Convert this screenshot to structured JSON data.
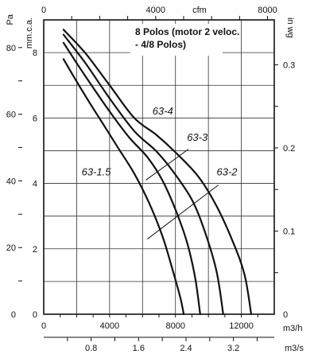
{
  "chart_data": {
    "type": "line",
    "title": "",
    "note": {
      "line1": "8 Polos (motor 2 veloc.",
      "line2": "- 4/8 Polos)"
    },
    "units": {
      "left_outer": "Pa",
      "left_inner": "mm.c.a.",
      "right": "in wg",
      "top": "cfm",
      "bottom_1": "m3/h",
      "bottom_2": "m3/s"
    },
    "axes": {
      "x_m3h": {
        "range": [
          0,
          14000
        ],
        "ticks": [
          0,
          4000,
          8000,
          12000
        ]
      },
      "x_m3s": {
        "range": [
          0,
          3.8889
        ],
        "ticks": [
          0.8,
          1.6,
          2.4,
          3.2
        ]
      },
      "x_cfm": {
        "range": [
          0,
          8240
        ],
        "ticks": [
          0,
          4000,
          8000
        ]
      },
      "y_mmca": {
        "range": [
          0,
          9
        ],
        "ticks": [
          0,
          2,
          4,
          6,
          8
        ]
      },
      "y_pa": {
        "range": [
          0,
          88.3
        ],
        "ticks": [
          0,
          20,
          40,
          60,
          80
        ]
      },
      "y_inwg": {
        "range": [
          0,
          0.354
        ],
        "ticks": [
          0,
          0.1,
          0.2,
          0.3
        ]
      },
      "grid": true
    },
    "series": [
      {
        "name": "63-4",
        "points": [
          [
            1200,
            8.7
          ],
          [
            2500,
            8.0
          ],
          [
            4000,
            7.0
          ],
          [
            5500,
            6.0
          ],
          [
            6800,
            5.5
          ],
          [
            8000,
            4.95
          ],
          [
            9400,
            4.2
          ],
          [
            10500,
            3.3
          ],
          [
            11500,
            2.2
          ],
          [
            12200,
            1.2
          ],
          [
            12600,
            0
          ]
        ]
      },
      {
        "name": "63-3",
        "points": [
          [
            1200,
            8.55
          ],
          [
            2500,
            7.7
          ],
          [
            4000,
            6.6
          ],
          [
            5500,
            5.6
          ],
          [
            6800,
            5.0
          ],
          [
            7800,
            4.4
          ],
          [
            9000,
            3.5
          ],
          [
            9800,
            2.5
          ],
          [
            10500,
            1.3
          ],
          [
            10900,
            0
          ]
        ]
      },
      {
        "name": "63-2",
        "points": [
          [
            1200,
            8.3
          ],
          [
            2500,
            7.3
          ],
          [
            4000,
            6.2
          ],
          [
            5200,
            5.4
          ],
          [
            6300,
            4.8
          ],
          [
            7200,
            4.1
          ],
          [
            8000,
            3.2
          ],
          [
            8700,
            2.2
          ],
          [
            9200,
            1.1
          ],
          [
            9500,
            0
          ]
        ]
      },
      {
        "name": "63-1.5",
        "points": [
          [
            1200,
            7.8
          ],
          [
            2500,
            6.7
          ],
          [
            3500,
            5.9
          ],
          [
            4500,
            5.1
          ],
          [
            5500,
            4.3
          ],
          [
            6400,
            3.4
          ],
          [
            7200,
            2.4
          ],
          [
            7800,
            1.4
          ],
          [
            8300,
            0.5
          ],
          [
            8500,
            0
          ]
        ]
      }
    ],
    "curve_labels": [
      {
        "text": "63-4",
        "x": 6600,
        "y": 6.1
      },
      {
        "text": "63-3",
        "x": 8700,
        "y": 5.3
      },
      {
        "text": "63-2",
        "x": 10500,
        "y": 4.25
      },
      {
        "text": "63-1.5",
        "x": 2300,
        "y": 4.25
      }
    ]
  }
}
